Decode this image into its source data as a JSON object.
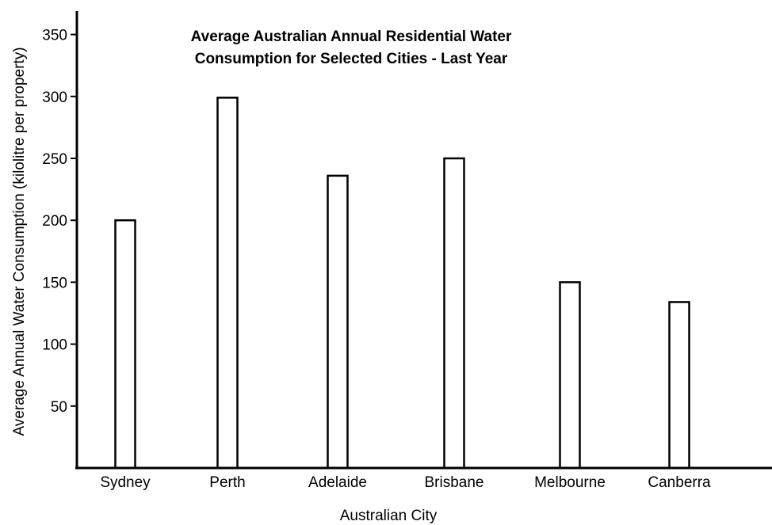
{
  "chart_data": {
    "type": "bar",
    "title_line1": "Average Australian Annual Residential Water",
    "title_line2": "Consumption for Selected Cities - Last Year",
    "xlabel": "Australian City",
    "ylabel": "Average Annual Water Consumption (kilolitre per property)",
    "categories": [
      "Sydney",
      "Perth",
      "Adelaide",
      "Brisbane",
      "Melbourne",
      "Canberra"
    ],
    "values": [
      200,
      299,
      236,
      250,
      150,
      134
    ],
    "ylim": [
      0,
      360
    ],
    "yticks": [
      50,
      100,
      150,
      200,
      250,
      300,
      350
    ],
    "bar_fill": "#ffffff",
    "bar_stroke": "#000000",
    "grid": false,
    "legend": "none"
  }
}
